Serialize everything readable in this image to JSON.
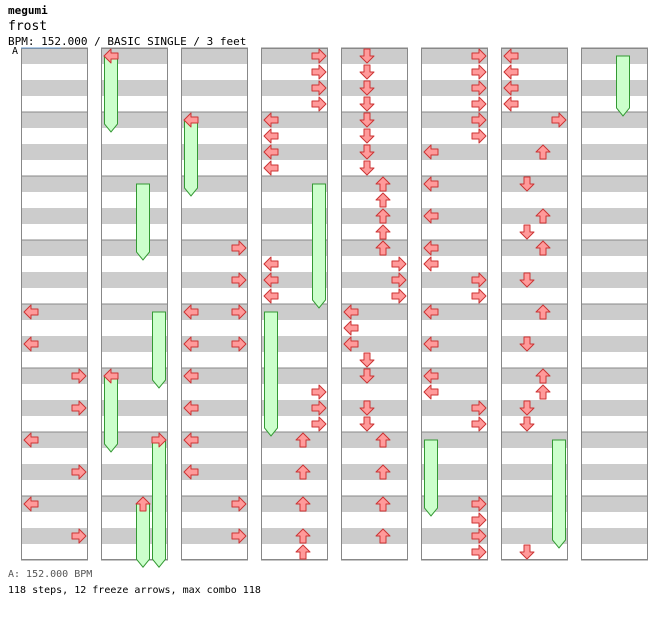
{
  "header": {
    "artist": "megumi",
    "title": "frost",
    "meta": "BPM: 152.000 / BASIC SINGLE / 3 feet",
    "marker": "A"
  },
  "footer": {
    "bpm_line": "A: 152.000 BPM",
    "stats_line": "118 steps, 12 freeze arrows, max combo 118"
  },
  "chart_data": {
    "type": "step-chart",
    "columns": 8,
    "measures_per_column": 8,
    "rows_per_measure": 4,
    "lanes": [
      "left",
      "down",
      "up",
      "right"
    ],
    "colors": {
      "arrow": "#ff9a9a",
      "arrow_stroke": "#cc3333",
      "freeze": "#ccffcc",
      "freeze_stroke": "#339933",
      "stripe": "#cccccc",
      "border": "#888888"
    },
    "notes": [
      {
        "c": 1,
        "r": 0,
        "l": "left"
      },
      {
        "c": 2,
        "r": 4,
        "l": "left"
      },
      {
        "c": 2,
        "r": 12,
        "l": "right"
      },
      {
        "c": 2,
        "r": 14,
        "l": "right"
      },
      {
        "c": 2,
        "r": 16,
        "l": "right"
      },
      {
        "c": 2,
        "r": 18,
        "l": "right"
      },
      {
        "c": 0,
        "r": 16,
        "l": "left"
      },
      {
        "c": 0,
        "r": 18,
        "l": "left"
      },
      {
        "c": 0,
        "r": 20,
        "l": "right"
      },
      {
        "c": 0,
        "r": 22,
        "l": "right"
      },
      {
        "c": 0,
        "r": 24,
        "l": "left"
      },
      {
        "c": 0,
        "r": 26,
        "l": "right"
      },
      {
        "c": 0,
        "r": 28,
        "l": "left"
      },
      {
        "c": 0,
        "r": 30,
        "l": "right"
      },
      {
        "c": 1,
        "r": 20,
        "l": "left"
      },
      {
        "c": 1,
        "r": 24,
        "l": "right"
      },
      {
        "c": 1,
        "r": 28,
        "l": "up"
      },
      {
        "c": 2,
        "r": 16,
        "l": "left"
      },
      {
        "c": 2,
        "r": 18,
        "l": "left"
      },
      {
        "c": 2,
        "r": 20,
        "l": "left"
      },
      {
        "c": 2,
        "r": 22,
        "l": "left"
      },
      {
        "c": 2,
        "r": 24,
        "l": "left"
      },
      {
        "c": 2,
        "r": 26,
        "l": "left"
      },
      {
        "c": 2,
        "r": 28,
        "l": "right"
      },
      {
        "c": 2,
        "r": 30,
        "l": "right"
      },
      {
        "c": 3,
        "r": 0,
        "l": "right"
      },
      {
        "c": 3,
        "r": 1,
        "l": "right"
      },
      {
        "c": 3,
        "r": 2,
        "l": "right"
      },
      {
        "c": 3,
        "r": 3,
        "l": "right"
      },
      {
        "c": 3,
        "r": 4,
        "l": "left"
      },
      {
        "c": 3,
        "r": 5,
        "l": "left"
      },
      {
        "c": 3,
        "r": 6,
        "l": "left"
      },
      {
        "c": 3,
        "r": 7,
        "l": "left"
      },
      {
        "c": 3,
        "r": 13,
        "l": "left"
      },
      {
        "c": 3,
        "r": 14,
        "l": "left"
      },
      {
        "c": 3,
        "r": 15,
        "l": "left"
      },
      {
        "c": 3,
        "r": 21,
        "l": "right"
      },
      {
        "c": 3,
        "r": 22,
        "l": "right"
      },
      {
        "c": 3,
        "r": 23,
        "l": "right"
      },
      {
        "c": 3,
        "r": 24,
        "l": "up"
      },
      {
        "c": 3,
        "r": 26,
        "l": "up"
      },
      {
        "c": 3,
        "r": 28,
        "l": "up"
      },
      {
        "c": 3,
        "r": 30,
        "l": "up"
      },
      {
        "c": 3,
        "r": 31,
        "l": "up"
      },
      {
        "c": 4,
        "r": 0,
        "l": "down"
      },
      {
        "c": 4,
        "r": 1,
        "l": "down"
      },
      {
        "c": 4,
        "r": 2,
        "l": "down"
      },
      {
        "c": 4,
        "r": 3,
        "l": "down"
      },
      {
        "c": 4,
        "r": 4,
        "l": "down"
      },
      {
        "c": 4,
        "r": 5,
        "l": "down"
      },
      {
        "c": 4,
        "r": 6,
        "l": "down"
      },
      {
        "c": 4,
        "r": 7,
        "l": "down"
      },
      {
        "c": 4,
        "r": 8,
        "l": "up"
      },
      {
        "c": 4,
        "r": 9,
        "l": "up"
      },
      {
        "c": 4,
        "r": 10,
        "l": "up"
      },
      {
        "c": 4,
        "r": 11,
        "l": "up"
      },
      {
        "c": 4,
        "r": 12,
        "l": "up"
      },
      {
        "c": 4,
        "r": 13,
        "l": "right"
      },
      {
        "c": 4,
        "r": 14,
        "l": "right"
      },
      {
        "c": 4,
        "r": 15,
        "l": "right"
      },
      {
        "c": 4,
        "r": 16,
        "l": "left"
      },
      {
        "c": 4,
        "r": 17,
        "l": "left"
      },
      {
        "c": 4,
        "r": 18,
        "l": "left"
      },
      {
        "c": 4,
        "r": 19,
        "l": "down"
      },
      {
        "c": 4,
        "r": 20,
        "l": "down"
      },
      {
        "c": 4,
        "r": 22,
        "l": "down"
      },
      {
        "c": 4,
        "r": 23,
        "l": "down"
      },
      {
        "c": 4,
        "r": 24,
        "l": "up"
      },
      {
        "c": 4,
        "r": 26,
        "l": "up"
      },
      {
        "c": 4,
        "r": 28,
        "l": "up"
      },
      {
        "c": 4,
        "r": 30,
        "l": "up"
      },
      {
        "c": 5,
        "r": 0,
        "l": "right"
      },
      {
        "c": 5,
        "r": 1,
        "l": "right"
      },
      {
        "c": 5,
        "r": 2,
        "l": "right"
      },
      {
        "c": 5,
        "r": 3,
        "l": "right"
      },
      {
        "c": 5,
        "r": 4,
        "l": "right"
      },
      {
        "c": 5,
        "r": 5,
        "l": "right"
      },
      {
        "c": 5,
        "r": 6,
        "l": "left"
      },
      {
        "c": 5,
        "r": 8,
        "l": "left"
      },
      {
        "c": 5,
        "r": 10,
        "l": "left"
      },
      {
        "c": 5,
        "r": 12,
        "l": "left"
      },
      {
        "c": 5,
        "r": 13,
        "l": "left"
      },
      {
        "c": 5,
        "r": 14,
        "l": "right"
      },
      {
        "c": 5,
        "r": 15,
        "l": "right"
      },
      {
        "c": 5,
        "r": 16,
        "l": "left"
      },
      {
        "c": 5,
        "r": 18,
        "l": "left"
      },
      {
        "c": 5,
        "r": 20,
        "l": "left"
      },
      {
        "c": 5,
        "r": 21,
        "l": "left"
      },
      {
        "c": 5,
        "r": 22,
        "l": "right"
      },
      {
        "c": 5,
        "r": 23,
        "l": "right"
      },
      {
        "c": 5,
        "r": 28,
        "l": "right"
      },
      {
        "c": 5,
        "r": 29,
        "l": "right"
      },
      {
        "c": 5,
        "r": 30,
        "l": "right"
      },
      {
        "c": 5,
        "r": 31,
        "l": "right"
      },
      {
        "c": 6,
        "r": 0,
        "l": "left"
      },
      {
        "c": 6,
        "r": 1,
        "l": "left"
      },
      {
        "c": 6,
        "r": 2,
        "l": "left"
      },
      {
        "c": 6,
        "r": 3,
        "l": "left"
      },
      {
        "c": 6,
        "r": 4,
        "l": "right"
      },
      {
        "c": 6,
        "r": 6,
        "l": "up"
      },
      {
        "c": 6,
        "r": 8,
        "l": "down"
      },
      {
        "c": 6,
        "r": 10,
        "l": "up"
      },
      {
        "c": 6,
        "r": 11,
        "l": "down"
      },
      {
        "c": 6,
        "r": 12,
        "l": "up"
      },
      {
        "c": 6,
        "r": 14,
        "l": "down"
      },
      {
        "c": 6,
        "r": 16,
        "l": "up"
      },
      {
        "c": 6,
        "r": 18,
        "l": "down"
      },
      {
        "c": 6,
        "r": 20,
        "l": "up"
      },
      {
        "c": 6,
        "r": 21,
        "l": "up"
      },
      {
        "c": 6,
        "r": 22,
        "l": "down"
      },
      {
        "c": 6,
        "r": 23,
        "l": "down"
      },
      {
        "c": 6,
        "r": 31,
        "l": "down"
      }
    ],
    "freezes": [
      {
        "c": 1,
        "l": "left",
        "r0": 0,
        "r1": 4.5
      },
      {
        "c": 2,
        "l": "left",
        "r0": 4,
        "r1": 8.5
      },
      {
        "c": 1,
        "l": "up",
        "r0": 8,
        "r1": 12.5
      },
      {
        "c": 1,
        "l": "right",
        "r0": 16,
        "r1": 20.5
      },
      {
        "c": 1,
        "l": "left",
        "r0": 20,
        "r1": 24.5
      },
      {
        "c": 1,
        "l": "right",
        "r0": 24,
        "r1": 31.7
      },
      {
        "c": 1,
        "l": "up",
        "r0": 28,
        "r1": 31.7
      },
      {
        "c": 3,
        "l": "right",
        "r0": 8,
        "r1": 15.5
      },
      {
        "c": 3,
        "l": "left",
        "r0": 16,
        "r1": 23.5
      },
      {
        "c": 5,
        "l": "left",
        "r0": 24,
        "r1": 28.5
      },
      {
        "c": 6,
        "l": "right",
        "r0": 24,
        "r1": 30.5
      },
      {
        "c": 7,
        "l": "up",
        "r0": 0,
        "r1": 3.5
      }
    ]
  }
}
